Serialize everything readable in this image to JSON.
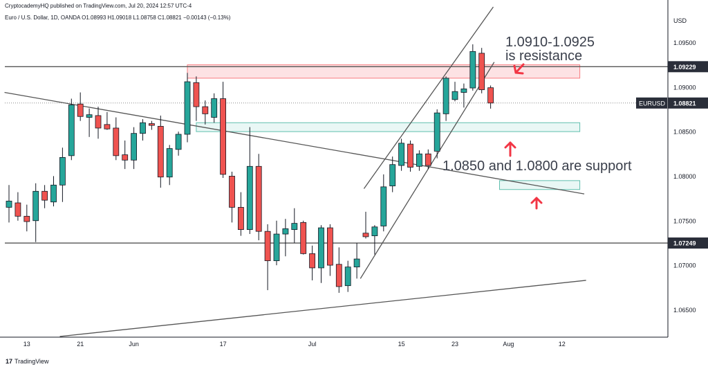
{
  "header": {
    "published_by": "CryptocademyHQ published on TradingView.com, Jul 20, 2024 12:57 UTC-4",
    "symbol_line": "Euro / U.S. Dollar, 1D, OANDA  O1.08993  H1.09018  L1.08758  C1.08821  −0.00143 (−0.13%)"
  },
  "footer": {
    "brand": "TradingView"
  },
  "price_axis": {
    "currency": "USD",
    "current_symbol": "EURUSD",
    "current_price": "1.08821",
    "ticks": [
      "1.09500",
      "1.09000",
      "1.08500",
      "1.08000",
      "1.07500",
      "1.07000",
      "1.06500"
    ],
    "level_labels": [
      "1.09229",
      "1.07249"
    ]
  },
  "annotations": {
    "resistance_line1": "1.0910-1.0925",
    "resistance_line2": "is resistance",
    "support": "1.0850 and 1.0800 are support"
  },
  "colors": {
    "up": "#26a69a",
    "down": "#ef5350",
    "candle_outline": "#131722",
    "arrow": "#f23645",
    "zone_red_fill": "#fde2e4",
    "zone_red_stroke": "#f77c80",
    "zone_green_fill": "#e9f7f5",
    "zone_green_stroke": "#5fbfae",
    "trendline": "#555555"
  },
  "chart_data": {
    "type": "candlestick",
    "title": "Euro / U.S. Dollar, 1D, OANDA",
    "x_ticks": [
      {
        "label": "13",
        "idx": 2
      },
      {
        "label": "21",
        "idx": 8
      },
      {
        "label": "Jun",
        "idx": 14
      },
      {
        "label": "17",
        "idx": 24
      },
      {
        "label": "Jul",
        "idx": 34
      },
      {
        "label": "15",
        "idx": 44
      },
      {
        "label": "23",
        "idx": 50
      },
      {
        "label": "Aug",
        "idx": 56
      },
      {
        "label": "12",
        "idx": 62
      }
    ],
    "ylim": [
      1.062,
      1.099
    ],
    "candles": [
      {
        "o": 1.0765,
        "h": 1.079,
        "l": 1.0748,
        "c": 1.0772
      },
      {
        "o": 1.077,
        "h": 1.0782,
        "l": 1.075,
        "c": 1.0755
      },
      {
        "o": 1.0755,
        "h": 1.0768,
        "l": 1.0738,
        "c": 1.0749
      },
      {
        "o": 1.075,
        "h": 1.0792,
        "l": 1.0726,
        "c": 1.0783
      },
      {
        "o": 1.0783,
        "h": 1.079,
        "l": 1.0764,
        "c": 1.0773
      },
      {
        "o": 1.0771,
        "h": 1.08,
        "l": 1.0766,
        "c": 1.079
      },
      {
        "o": 1.079,
        "h": 1.0832,
        "l": 1.0771,
        "c": 1.0821
      },
      {
        "o": 1.0823,
        "h": 1.0887,
        "l": 1.0818,
        "c": 1.088
      },
      {
        "o": 1.0881,
        "h": 1.0894,
        "l": 1.0862,
        "c": 1.0867
      },
      {
        "o": 1.0866,
        "h": 1.0876,
        "l": 1.0844,
        "c": 1.0869
      },
      {
        "o": 1.0868,
        "h": 1.0878,
        "l": 1.0842,
        "c": 1.0854
      },
      {
        "o": 1.0858,
        "h": 1.0872,
        "l": 1.0852,
        "c": 1.0853
      },
      {
        "o": 1.0854,
        "h": 1.0866,
        "l": 1.0818,
        "c": 1.0823
      },
      {
        "o": 1.0824,
        "h": 1.084,
        "l": 1.0808,
        "c": 1.0818
      },
      {
        "o": 1.0818,
        "h": 1.0855,
        "l": 1.0808,
        "c": 1.0848
      },
      {
        "o": 1.0848,
        "h": 1.0864,
        "l": 1.084,
        "c": 1.086
      },
      {
        "o": 1.0859,
        "h": 1.0862,
        "l": 1.0852,
        "c": 1.0857
      },
      {
        "o": 1.0856,
        "h": 1.0868,
        "l": 1.0787,
        "c": 1.0799
      },
      {
        "o": 1.0799,
        "h": 1.0835,
        "l": 1.079,
        "c": 1.0831
      },
      {
        "o": 1.083,
        "h": 1.085,
        "l": 1.0823,
        "c": 1.0847
      },
      {
        "o": 1.0847,
        "h": 1.0916,
        "l": 1.0838,
        "c": 1.0906
      },
      {
        "o": 1.0905,
        "h": 1.0912,
        "l": 1.0862,
        "c": 1.0878
      },
      {
        "o": 1.0878,
        "h": 1.0885,
        "l": 1.0858,
        "c": 1.087
      },
      {
        "o": 1.0866,
        "h": 1.0893,
        "l": 1.086,
        "c": 1.0887
      },
      {
        "o": 1.0887,
        "h": 1.0906,
        "l": 1.0798,
        "c": 1.0802
      },
      {
        "o": 1.08,
        "h": 1.0805,
        "l": 1.0748,
        "c": 1.0765
      },
      {
        "o": 1.0765,
        "h": 1.0782,
        "l": 1.0733,
        "c": 1.074
      },
      {
        "o": 1.074,
        "h": 1.0855,
        "l": 1.0735,
        "c": 1.0811
      },
      {
        "o": 1.0811,
        "h": 1.0825,
        "l": 1.0728,
        "c": 1.0738
      },
      {
        "o": 1.0738,
        "h": 1.0746,
        "l": 1.0672,
        "c": 1.0705
      },
      {
        "o": 1.0705,
        "h": 1.075,
        "l": 1.07,
        "c": 1.0735
      },
      {
        "o": 1.0735,
        "h": 1.0752,
        "l": 1.071,
        "c": 1.0741
      },
      {
        "o": 1.074,
        "h": 1.0764,
        "l": 1.0725,
        "c": 1.0747
      },
      {
        "o": 1.0748,
        "h": 1.075,
        "l": 1.0712,
        "c": 1.0713
      },
      {
        "o": 1.0713,
        "h": 1.0722,
        "l": 1.0683,
        "c": 1.0697
      },
      {
        "o": 1.0697,
        "h": 1.0745,
        "l": 1.068,
        "c": 1.0742
      },
      {
        "o": 1.0742,
        "h": 1.0746,
        "l": 1.0688,
        "c": 1.07
      },
      {
        "o": 1.0701,
        "h": 1.072,
        "l": 1.0669,
        "c": 1.0676
      },
      {
        "o": 1.0677,
        "h": 1.0705,
        "l": 1.067,
        "c": 1.0698
      },
      {
        "o": 1.0698,
        "h": 1.0725,
        "l": 1.0685,
        "c": 1.0707
      },
      {
        "o": 1.0736,
        "h": 1.076,
        "l": 1.073,
        "c": 1.0732
      },
      {
        "o": 1.0733,
        "h": 1.0745,
        "l": 1.0712,
        "c": 1.0743
      },
      {
        "o": 1.0744,
        "h": 1.0802,
        "l": 1.0738,
        "c": 1.0788
      },
      {
        "o": 1.0789,
        "h": 1.0822,
        "l": 1.0782,
        "c": 1.0813
      },
      {
        "o": 1.0812,
        "h": 1.0842,
        "l": 1.0806,
        "c": 1.0837
      },
      {
        "o": 1.0836,
        "h": 1.084,
        "l": 1.0805,
        "c": 1.081
      },
      {
        "o": 1.0811,
        "h": 1.0829,
        "l": 1.0806,
        "c": 1.0825
      },
      {
        "o": 1.0825,
        "h": 1.083,
        "l": 1.0808,
        "c": 1.0812
      },
      {
        "o": 1.0828,
        "h": 1.0875,
        "l": 1.082,
        "c": 1.0871
      },
      {
        "o": 1.087,
        "h": 1.0912,
        "l": 1.0862,
        "c": 1.091
      },
      {
        "o": 1.0886,
        "h": 1.0906,
        "l": 1.0884,
        "c": 1.0895
      },
      {
        "o": 1.0894,
        "h": 1.0904,
        "l": 1.0877,
        "c": 1.0898
      },
      {
        "o": 1.0899,
        "h": 1.0948,
        "l": 1.0896,
        "c": 1.094
      },
      {
        "o": 1.0938,
        "h": 1.0944,
        "l": 1.0893,
        "c": 1.0897
      },
      {
        "o": 1.08993,
        "h": 1.09018,
        "l": 1.08758,
        "c": 1.08821
      }
    ],
    "horizontal_levels": [
      1.09229,
      1.07249
    ],
    "zones": [
      {
        "kind": "resistance",
        "from_idx": 20,
        "to_idx": 64,
        "low": 1.091,
        "high": 1.0925
      },
      {
        "kind": "support",
        "from_idx": 21,
        "to_idx": 64,
        "low": 1.085,
        "high": 1.086
      },
      {
        "kind": "support",
        "from_idx": 55,
        "to_idx": 64,
        "low": 1.0785,
        "high": 1.0795
      }
    ],
    "trendlines": [
      {
        "x1": -0.5,
        "y1": 1.0894,
        "x2": 64.5,
        "y2": 1.078
      },
      {
        "x1": 5.7,
        "y1": 1.062,
        "x2": 64.7,
        "y2": 1.0683
      },
      {
        "x1": 39.8,
        "y1": 1.0786,
        "x2": 54.3,
        "y2": 1.099
      },
      {
        "x1": 39.4,
        "y1": 1.0685,
        "x2": 54.4,
        "y2": 1.0928
      }
    ]
  }
}
